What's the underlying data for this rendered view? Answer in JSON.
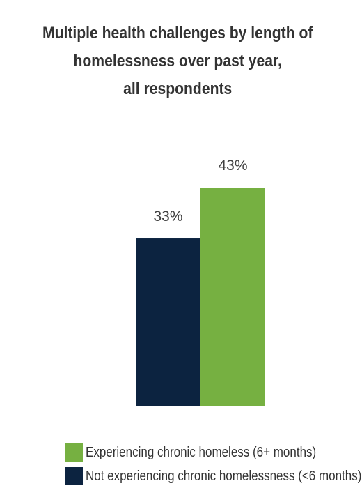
{
  "chart_data": {
    "type": "bar",
    "title_lines": [
      "Multiple health challenges by length of",
      "homelessness over past year,",
      "all respondents"
    ],
    "categories": [
      ""
    ],
    "series": [
      {
        "name": "Not experiencing chronic homelessness (<6 months)",
        "values": [
          33
        ],
        "label": "33%",
        "color": "#0c2340"
      },
      {
        "name": "Experiencing chronic homeless (6+ months)",
        "values": [
          43
        ],
        "label": "43%",
        "color": "#76b041"
      }
    ],
    "ylim": [
      0,
      43
    ],
    "y_unit": "%",
    "legend": [
      {
        "label": "Experiencing chronic homeless (6+ months)",
        "color": "#76b041"
      },
      {
        "label": "Not experiencing chronic homelessness (<6 months)",
        "color": "#0c2340"
      }
    ],
    "legend_position": "bottom"
  }
}
